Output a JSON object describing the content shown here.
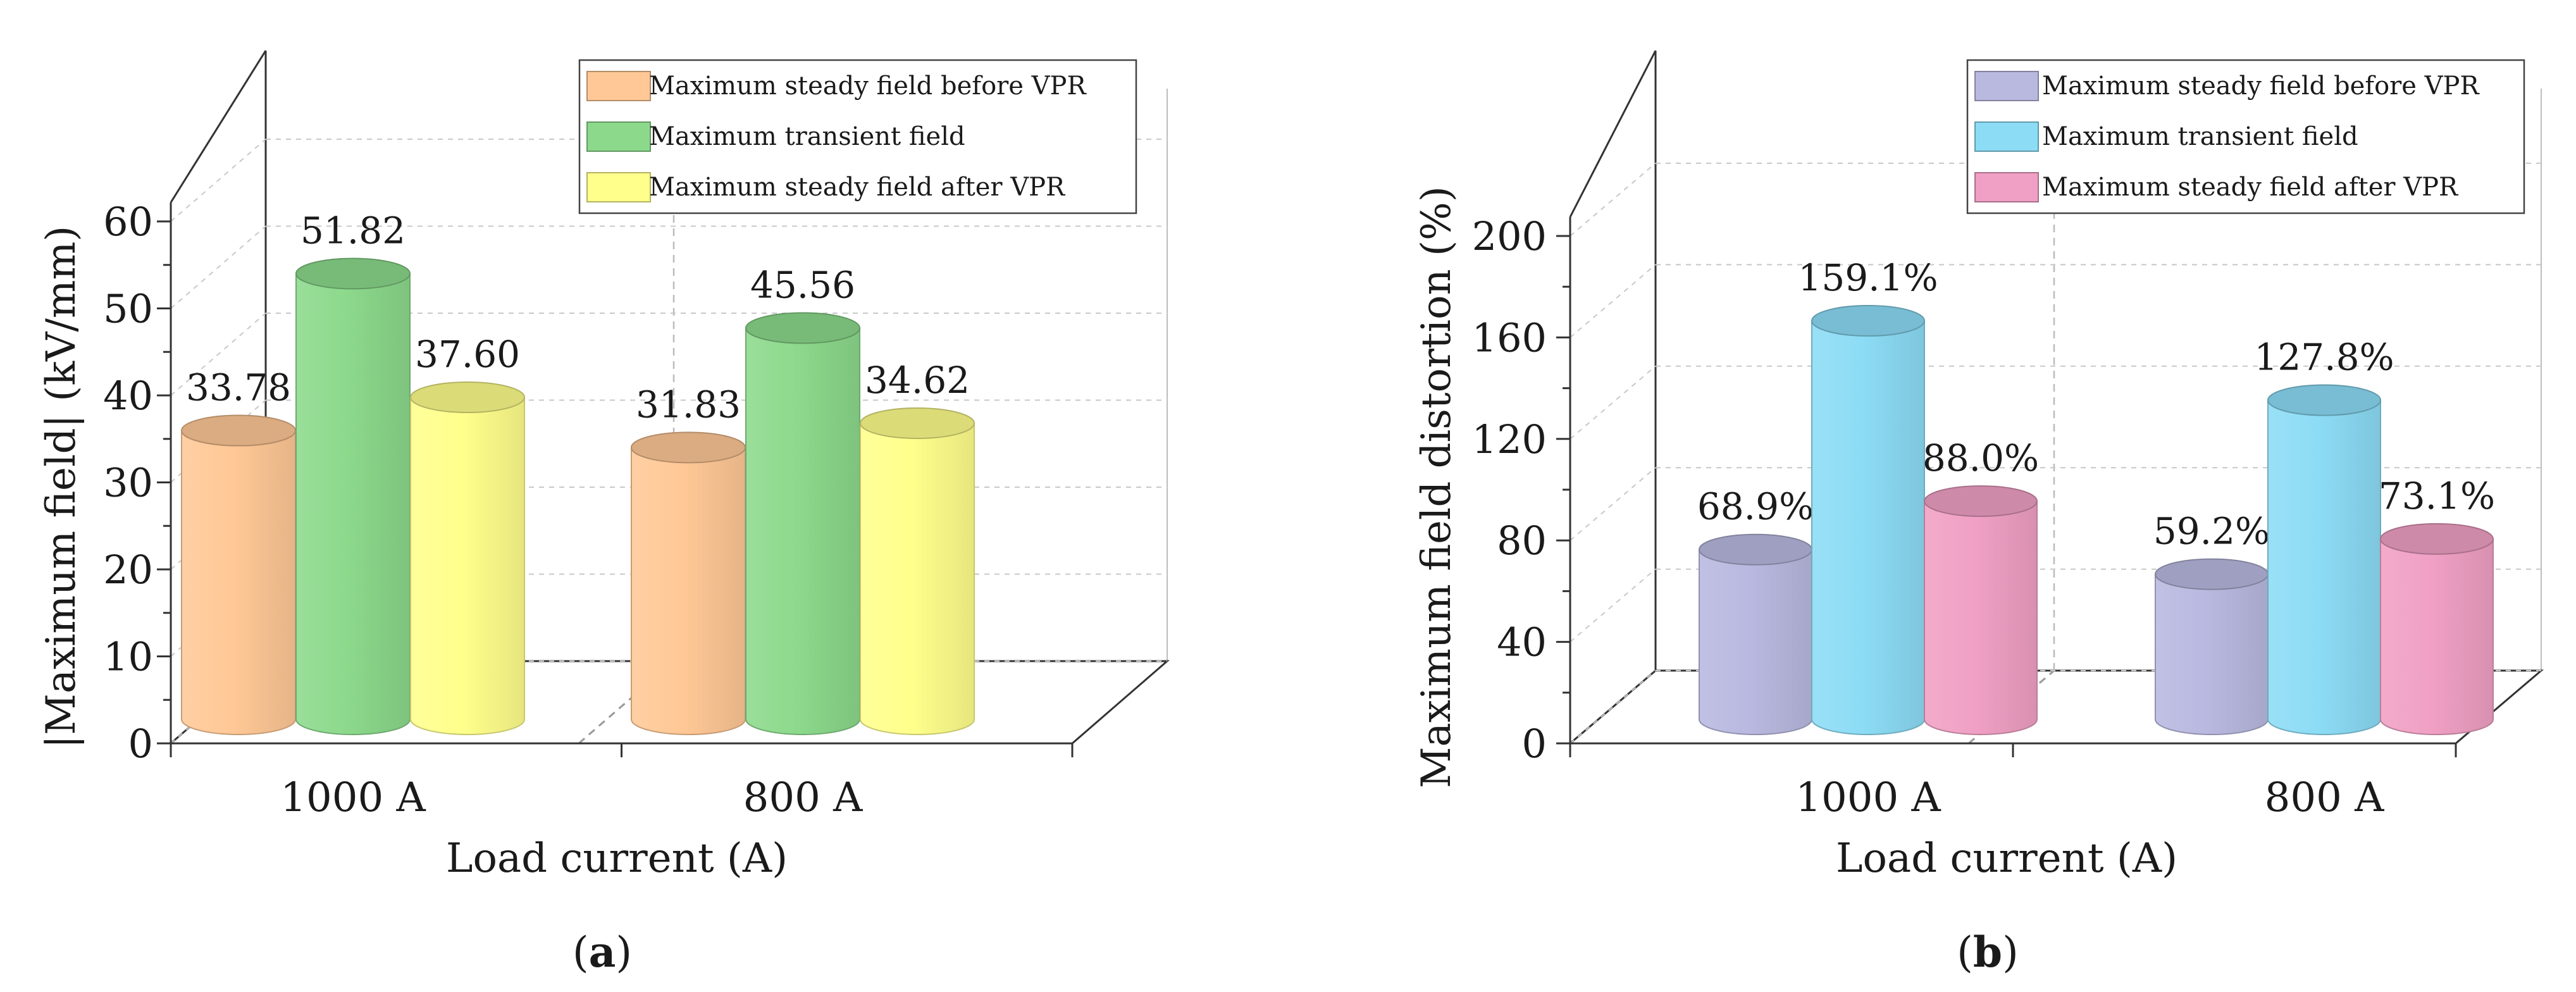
{
  "colors": {
    "before": "#ffc896",
    "transient": "#8cd98c",
    "after": "#ffff8c",
    "before_b": "#b9b9e0",
    "transient_b": "#8cdcf5",
    "after_b": "#f0a0c4",
    "axis": "#333333",
    "grid": "#c8c8c8"
  },
  "chart_data": [
    {
      "type": "bar",
      "title": "",
      "panel_label": "a",
      "xlabel": "Load current (A)",
      "ylabel": "|Maximum field| (kV/mm)",
      "categories": [
        "1000 A",
        "800 A"
      ],
      "ylim": [
        0,
        60
      ],
      "yticks": [
        0,
        10,
        20,
        30,
        40,
        50,
        60
      ],
      "ytick_labels": [
        "0",
        "10",
        "20",
        "30",
        "40",
        "50",
        "60"
      ],
      "grid": true,
      "legend_position": "top-right",
      "series": [
        {
          "name": "Maximum steady field before VPR",
          "values": [
            33.78,
            31.83
          ],
          "labels": [
            "33.78",
            "31.83"
          ],
          "color_key": "before"
        },
        {
          "name": "Maximum transient field",
          "values": [
            51.82,
            45.56
          ],
          "labels": [
            "51.82",
            "45.56"
          ],
          "color_key": "transient"
        },
        {
          "name": "Maximum steady field after VPR",
          "values": [
            37.6,
            34.62
          ],
          "labels": [
            "37.60",
            "34.62"
          ],
          "color_key": "after"
        }
      ]
    },
    {
      "type": "bar",
      "title": "",
      "panel_label": "b",
      "xlabel": "Load current (A)",
      "ylabel": "Maximum field distortion (%)",
      "categories": [
        "1000 A",
        "800 A"
      ],
      "ylim": [
        0,
        200
      ],
      "yticks": [
        0,
        40,
        80,
        120,
        160,
        200
      ],
      "ytick_labels": [
        "0",
        "40",
        "80",
        "120",
        "160",
        "200"
      ],
      "grid": true,
      "legend_position": "top-right",
      "series": [
        {
          "name": "Maximum steady field before VPR",
          "values": [
            68.9,
            59.2
          ],
          "labels": [
            "68.9%",
            "59.2%"
          ],
          "color_key": "before_b"
        },
        {
          "name": "Maximum transient field",
          "values": [
            159.1,
            127.8
          ],
          "labels": [
            "159.1%",
            "127.8%"
          ],
          "color_key": "transient_b"
        },
        {
          "name": "Maximum steady field after VPR",
          "values": [
            88.0,
            73.1
          ],
          "labels": [
            "88.0%",
            "73.1%"
          ],
          "color_key": "after_b"
        }
      ]
    }
  ]
}
